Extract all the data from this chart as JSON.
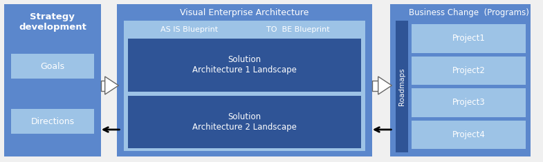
{
  "bg_color": "#f0f0f0",
  "blue_medium": "#5B87CC",
  "blue_lighter": "#9DC3E6",
  "blue_inner": "#2F5496",
  "blue_sol": "#2F5496",
  "blue_light_inner": "#7BA7D4",
  "panel1_title": "Strategy\ndevelopment",
  "panel2_title": "Visual Enterprise Architecture",
  "panel2_sub_left": "AS IS Blueprint",
  "panel2_sub_right": "TO  BE Blueprint",
  "panel2_sol1": "Solution\nArchitecture 1 Landscape",
  "panel2_sol2": "Solution\nArchitecture 2 Landscape",
  "panel3_title": "Business Change  (Programs)",
  "panel3_roadmap": "Roadmaps",
  "panel3_projects": [
    "Project1",
    "Project2",
    "Project3",
    "Project4"
  ],
  "fig_w": 7.85,
  "fig_h": 2.35,
  "dpi": 100
}
